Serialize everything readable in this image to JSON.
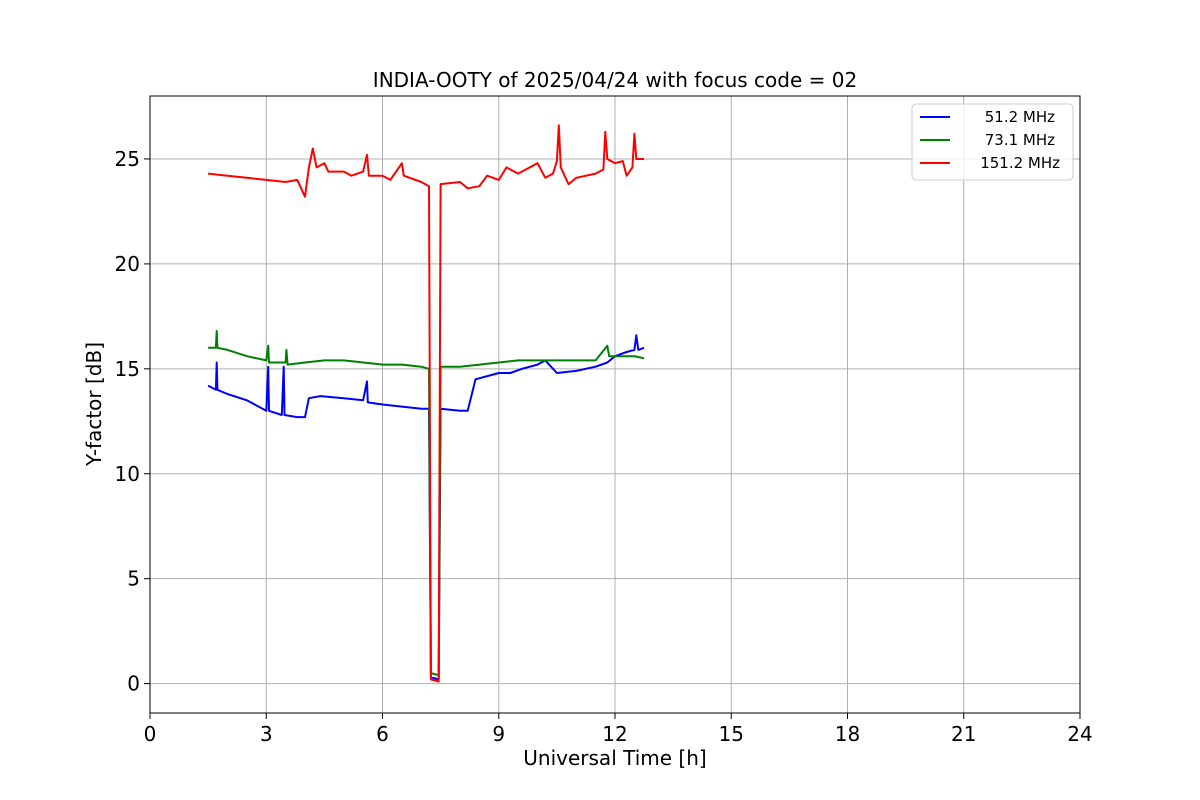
{
  "chart_data": {
    "type": "line",
    "title": "INDIA-OOTY of 2025/04/24 with focus code = 02",
    "xlabel": "Universal Time [h]",
    "ylabel": "Y-factor [dB]",
    "xlim": [
      0,
      24
    ],
    "ylim": [
      -1.4,
      28
    ],
    "xticks": [
      0,
      3,
      6,
      9,
      12,
      15,
      18,
      21,
      24
    ],
    "yticks": [
      0,
      5,
      10,
      15,
      20,
      25
    ],
    "grid": true,
    "legend_position": "top-right",
    "series": [
      {
        "name": "51.2 MHz",
        "color": "#0000ff",
        "points": [
          [
            1.5,
            14.2
          ],
          [
            1.7,
            14.0
          ],
          [
            1.72,
            15.3
          ],
          [
            1.74,
            14.0
          ],
          [
            2.0,
            13.8
          ],
          [
            2.5,
            13.5
          ],
          [
            3.0,
            13.0
          ],
          [
            3.05,
            15.1
          ],
          [
            3.07,
            13.0
          ],
          [
            3.4,
            12.8
          ],
          [
            3.45,
            15.1
          ],
          [
            3.47,
            12.8
          ],
          [
            3.8,
            12.7
          ],
          [
            4.0,
            12.7
          ],
          [
            4.1,
            13.6
          ],
          [
            4.4,
            13.7
          ],
          [
            5.0,
            13.6
          ],
          [
            5.5,
            13.5
          ],
          [
            5.6,
            14.4
          ],
          [
            5.62,
            13.4
          ],
          [
            6.0,
            13.3
          ],
          [
            6.5,
            13.2
          ],
          [
            7.0,
            13.1
          ],
          [
            7.2,
            13.1
          ],
          [
            7.25,
            0.3
          ],
          [
            7.45,
            0.2
          ],
          [
            7.5,
            13.1
          ],
          [
            8.0,
            13.0
          ],
          [
            8.2,
            13.0
          ],
          [
            8.4,
            14.5
          ],
          [
            8.8,
            14.7
          ],
          [
            9.0,
            14.8
          ],
          [
            9.3,
            14.8
          ],
          [
            9.6,
            15.0
          ],
          [
            10.0,
            15.2
          ],
          [
            10.2,
            15.4
          ],
          [
            10.5,
            14.8
          ],
          [
            11.0,
            14.9
          ],
          [
            11.5,
            15.1
          ],
          [
            11.8,
            15.3
          ],
          [
            12.0,
            15.6
          ],
          [
            12.3,
            15.8
          ],
          [
            12.5,
            15.9
          ],
          [
            12.55,
            16.6
          ],
          [
            12.6,
            15.9
          ],
          [
            12.75,
            16.0
          ]
        ]
      },
      {
        "name": "73.1 MHz",
        "color": "#008000",
        "points": [
          [
            1.5,
            16.0
          ],
          [
            1.7,
            16.0
          ],
          [
            1.72,
            16.8
          ],
          [
            1.74,
            16.0
          ],
          [
            2.0,
            15.9
          ],
          [
            2.5,
            15.6
          ],
          [
            3.0,
            15.4
          ],
          [
            3.05,
            16.1
          ],
          [
            3.07,
            15.3
          ],
          [
            3.5,
            15.3
          ],
          [
            3.52,
            15.9
          ],
          [
            3.55,
            15.2
          ],
          [
            4.0,
            15.3
          ],
          [
            4.5,
            15.4
          ],
          [
            5.0,
            15.4
          ],
          [
            5.5,
            15.3
          ],
          [
            6.0,
            15.2
          ],
          [
            6.5,
            15.2
          ],
          [
            7.0,
            15.1
          ],
          [
            7.2,
            15.0
          ],
          [
            7.25,
            0.5
          ],
          [
            7.45,
            0.4
          ],
          [
            7.5,
            15.1
          ],
          [
            8.0,
            15.1
          ],
          [
            8.5,
            15.2
          ],
          [
            9.0,
            15.3
          ],
          [
            9.5,
            15.4
          ],
          [
            10.0,
            15.4
          ],
          [
            10.5,
            15.4
          ],
          [
            11.0,
            15.4
          ],
          [
            11.5,
            15.4
          ],
          [
            11.8,
            16.1
          ],
          [
            11.85,
            15.6
          ],
          [
            12.0,
            15.6
          ],
          [
            12.5,
            15.6
          ],
          [
            12.75,
            15.5
          ]
        ]
      },
      {
        "name": "151.2 MHz",
        "color": "#ff0000",
        "points": [
          [
            1.5,
            24.3
          ],
          [
            2.0,
            24.2
          ],
          [
            2.5,
            24.1
          ],
          [
            3.0,
            24.0
          ],
          [
            3.5,
            23.9
          ],
          [
            3.8,
            24.0
          ],
          [
            4.0,
            23.2
          ],
          [
            4.1,
            24.6
          ],
          [
            4.2,
            25.5
          ],
          [
            4.3,
            24.6
          ],
          [
            4.5,
            24.8
          ],
          [
            4.6,
            24.4
          ],
          [
            5.0,
            24.4
          ],
          [
            5.2,
            24.2
          ],
          [
            5.5,
            24.4
          ],
          [
            5.6,
            25.2
          ],
          [
            5.65,
            24.2
          ],
          [
            6.0,
            24.2
          ],
          [
            6.2,
            24.0
          ],
          [
            6.5,
            24.8
          ],
          [
            6.55,
            24.2
          ],
          [
            7.0,
            23.9
          ],
          [
            7.2,
            23.7
          ],
          [
            7.25,
            0.2
          ],
          [
            7.45,
            0.1
          ],
          [
            7.5,
            23.8
          ],
          [
            8.0,
            23.9
          ],
          [
            8.2,
            23.6
          ],
          [
            8.5,
            23.7
          ],
          [
            8.7,
            24.2
          ],
          [
            9.0,
            24.0
          ],
          [
            9.2,
            24.6
          ],
          [
            9.5,
            24.3
          ],
          [
            9.8,
            24.6
          ],
          [
            10.0,
            24.8
          ],
          [
            10.2,
            24.1
          ],
          [
            10.4,
            24.3
          ],
          [
            10.5,
            24.9
          ],
          [
            10.55,
            26.6
          ],
          [
            10.6,
            24.6
          ],
          [
            10.8,
            23.8
          ],
          [
            11.0,
            24.1
          ],
          [
            11.5,
            24.3
          ],
          [
            11.7,
            24.5
          ],
          [
            11.75,
            26.3
          ],
          [
            11.8,
            25.0
          ],
          [
            12.0,
            24.8
          ],
          [
            12.2,
            24.9
          ],
          [
            12.3,
            24.2
          ],
          [
            12.45,
            24.6
          ],
          [
            12.5,
            26.2
          ],
          [
            12.55,
            25.0
          ],
          [
            12.75,
            25.0
          ]
        ]
      }
    ]
  }
}
